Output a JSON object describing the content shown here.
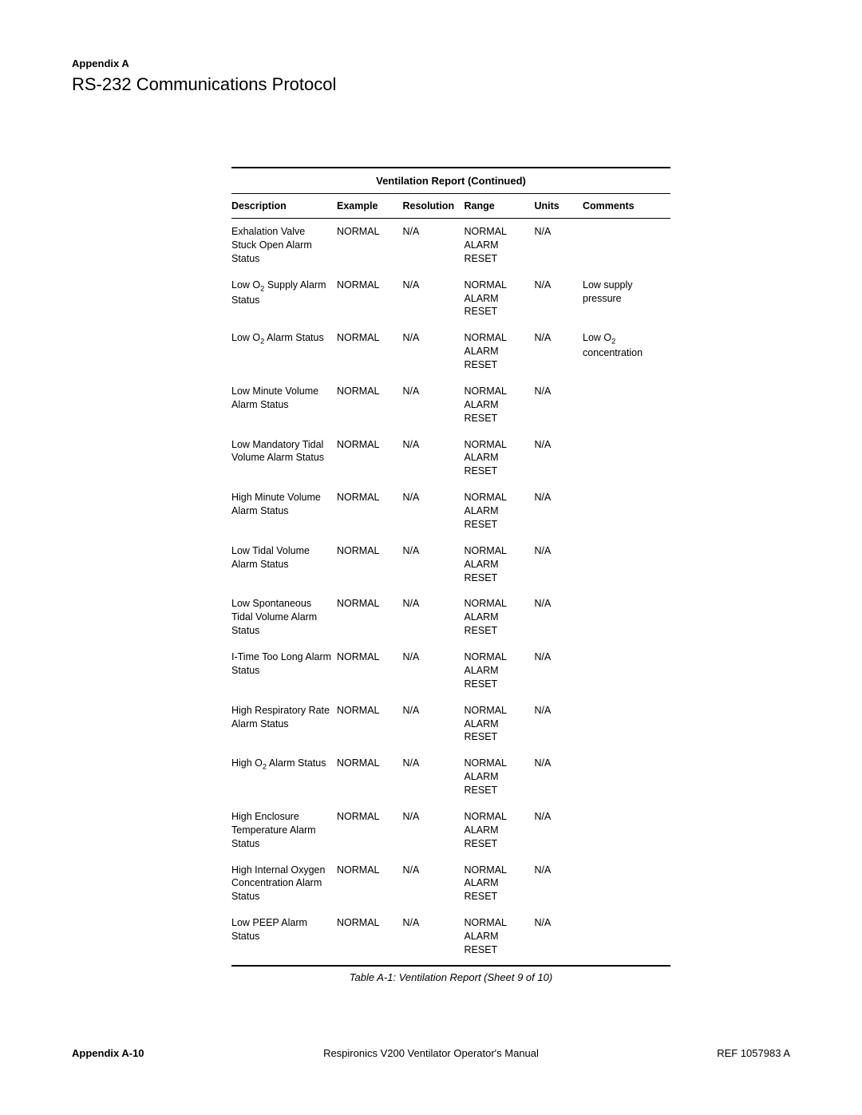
{
  "header": {
    "appendix_label": "Appendix A",
    "section_title": "RS-232 Communications Protocol"
  },
  "table": {
    "title": "Ventilation Report (Continued)",
    "columns": [
      "Description",
      "Example",
      "Resolution",
      "Range",
      "Units",
      "Comments"
    ],
    "range_lines": [
      "NORMAL",
      "ALARM",
      "RESET"
    ],
    "rows": [
      {
        "description": "Exhalation Valve Stuck Open Alarm Status",
        "example": "NORMAL",
        "resolution": "N/A",
        "units": "N/A",
        "comments": ""
      },
      {
        "description": "Low O₂ Supply Alarm Status",
        "example": "NORMAL",
        "resolution": "N/A",
        "units": "N/A",
        "comments": "Low supply pressure"
      },
      {
        "description": "Low O₂ Alarm Status",
        "example": "NORMAL",
        "resolution": "N/A",
        "units": "N/A",
        "comments": "Low O₂ concentration"
      },
      {
        "description": "Low Minute Volume Alarm Status",
        "example": "NORMAL",
        "resolution": "N/A",
        "units": "N/A",
        "comments": ""
      },
      {
        "description": "Low Mandatory Tidal Volume Alarm Status",
        "example": "NORMAL",
        "resolution": "N/A",
        "units": "N/A",
        "comments": ""
      },
      {
        "description": "High Minute Volume Alarm Status",
        "example": "NORMAL",
        "resolution": "N/A",
        "units": "N/A",
        "comments": ""
      },
      {
        "description": "Low Tidal Volume Alarm Status",
        "example": "NORMAL",
        "resolution": "N/A",
        "units": "N/A",
        "comments": ""
      },
      {
        "description": "Low Spontaneous Tidal Volume Alarm Status",
        "example": "NORMAL",
        "resolution": "N/A",
        "units": "N/A",
        "comments": ""
      },
      {
        "description": "I-Time Too Long Alarm Status",
        "example": "NORMAL",
        "resolution": "N/A",
        "units": "N/A",
        "comments": ""
      },
      {
        "description": "High Respiratory Rate Alarm Status",
        "example": "NORMAL",
        "resolution": "N/A",
        "units": "N/A",
        "comments": ""
      },
      {
        "description": "High O₂ Alarm Status",
        "example": "NORMAL",
        "resolution": "N/A",
        "units": "N/A",
        "comments": ""
      },
      {
        "description": "High Enclosure Temperature Alarm Status",
        "example": "NORMAL",
        "resolution": "N/A",
        "units": "N/A",
        "comments": ""
      },
      {
        "description": "High Internal Oxygen Concentration Alarm Status",
        "example": "NORMAL",
        "resolution": "N/A",
        "units": "N/A",
        "comments": ""
      },
      {
        "description": "Low PEEP Alarm Status",
        "example": "NORMAL",
        "resolution": "N/A",
        "units": "N/A",
        "comments": ""
      }
    ],
    "caption": "Table A-1: Ventilation Report (Sheet 9 of 10)"
  },
  "footer": {
    "left": "Appendix A-10",
    "center": "Respironics V200 Ventilator Operator's Manual",
    "right": "REF 1057983 A"
  }
}
